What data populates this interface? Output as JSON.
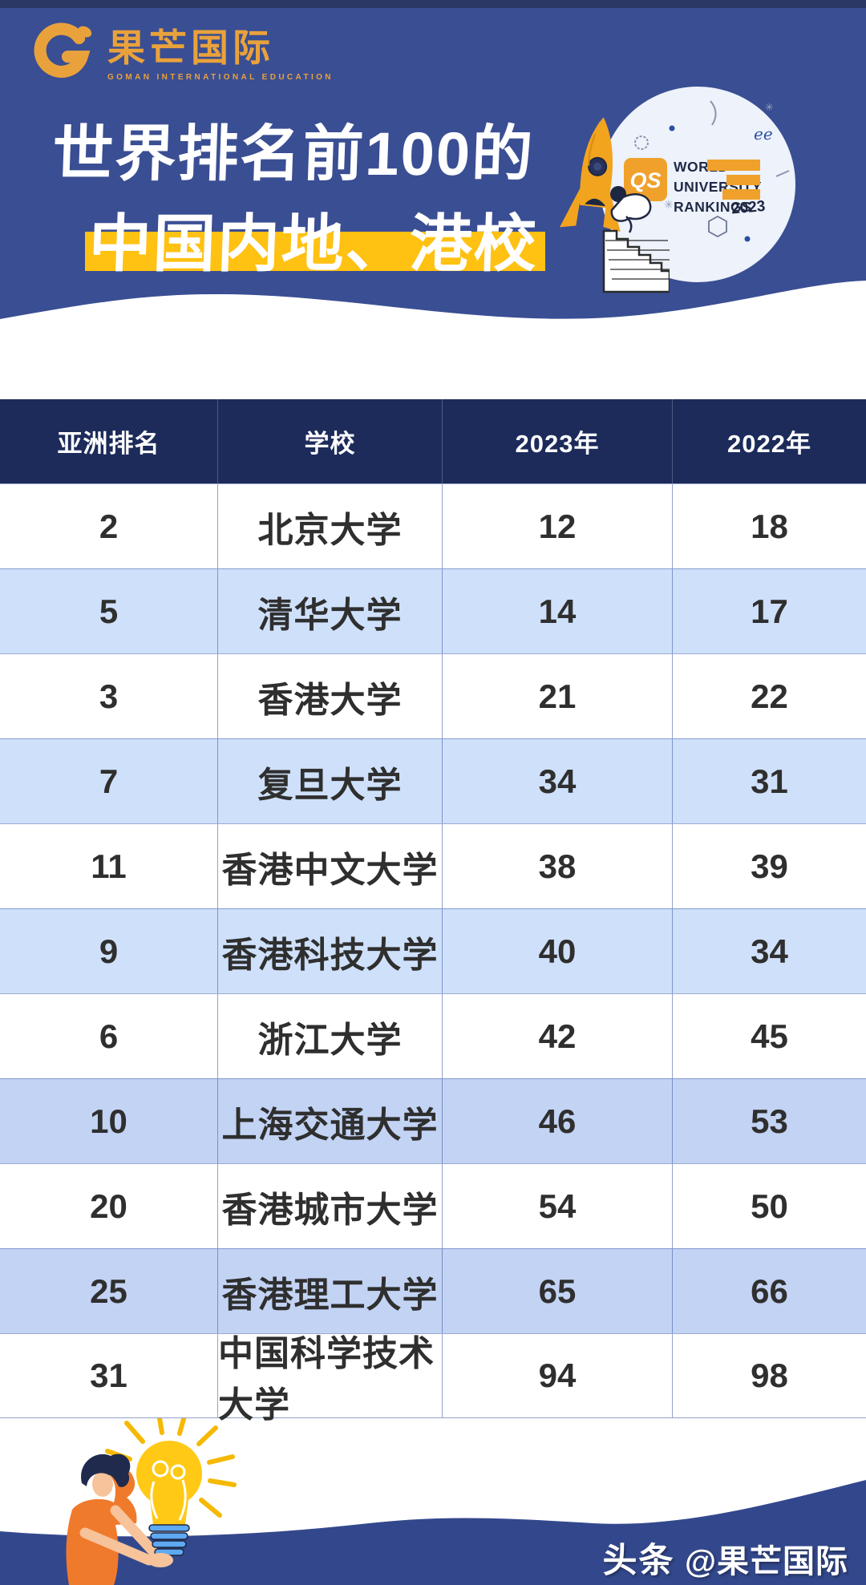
{
  "brand": {
    "name": "果芒国际",
    "tagline": "GOMAN INTERNATIONAL EDUCATION"
  },
  "header": {
    "title_line1": "世界排名前100的",
    "title_line2": "中国内地、港校"
  },
  "badge": {
    "qs_label": "QS",
    "lines": [
      "WORLD",
      "UNIVERSITY",
      "RANKINGS"
    ],
    "year": "2023"
  },
  "table": {
    "columns": [
      "亚洲排名",
      "学校",
      "2023年",
      "2022年"
    ],
    "rows": [
      [
        "2",
        "北京大学",
        "12",
        "18"
      ],
      [
        "5",
        "清华大学",
        "14",
        "17"
      ],
      [
        "3",
        "香港大学",
        "21",
        "22"
      ],
      [
        "7",
        "复旦大学",
        "34",
        "31"
      ],
      [
        "11",
        "香港中文大学",
        "38",
        "39"
      ],
      [
        "9",
        "香港科技大学",
        "40",
        "34"
      ],
      [
        "6",
        "浙江大学",
        "42",
        "45"
      ],
      [
        "10",
        "上海交通大学",
        "46",
        "53"
      ],
      [
        "20",
        "香港城市大学",
        "54",
        "50"
      ],
      [
        "25",
        "香港理工大学",
        "65",
        "66"
      ],
      [
        "31",
        "中国科学技术大学",
        "94",
        "98"
      ]
    ]
  },
  "footer": {
    "platform": "头条",
    "handle": "@果芒国际"
  },
  "colors": {
    "hero_blue": "#3A4E93",
    "header_navy": "#1C2B5A",
    "row_blue": "#CFE0FA",
    "row_blue_alt": "#C3D3F4",
    "highlight_yellow": "#FFC112",
    "brand_orange": "#E9A23B",
    "qs_orange": "#F0A12B",
    "footer_blue": "#33488C",
    "bulb_yellow": "#FFC915",
    "text_dark": "#2F2F2F"
  },
  "chart_data": {
    "type": "table",
    "title": "世界排名前100的中国内地、港校 (QS World University Rankings 2023)",
    "columns": [
      "亚洲排名",
      "学校",
      "2023年",
      "2022年"
    ],
    "rows": [
      [
        2,
        "北京大学",
        12,
        18
      ],
      [
        5,
        "清华大学",
        14,
        17
      ],
      [
        3,
        "香港大学",
        21,
        22
      ],
      [
        7,
        "复旦大学",
        34,
        31
      ],
      [
        11,
        "香港中文大学",
        38,
        39
      ],
      [
        9,
        "香港科技大学",
        40,
        34
      ],
      [
        6,
        "浙江大学",
        42,
        45
      ],
      [
        10,
        "上海交通大学",
        46,
        53
      ],
      [
        20,
        "香港城市大学",
        54,
        50
      ],
      [
        25,
        "香港理工大学",
        65,
        66
      ],
      [
        31,
        "中国科学技术大学",
        94,
        98
      ]
    ]
  }
}
